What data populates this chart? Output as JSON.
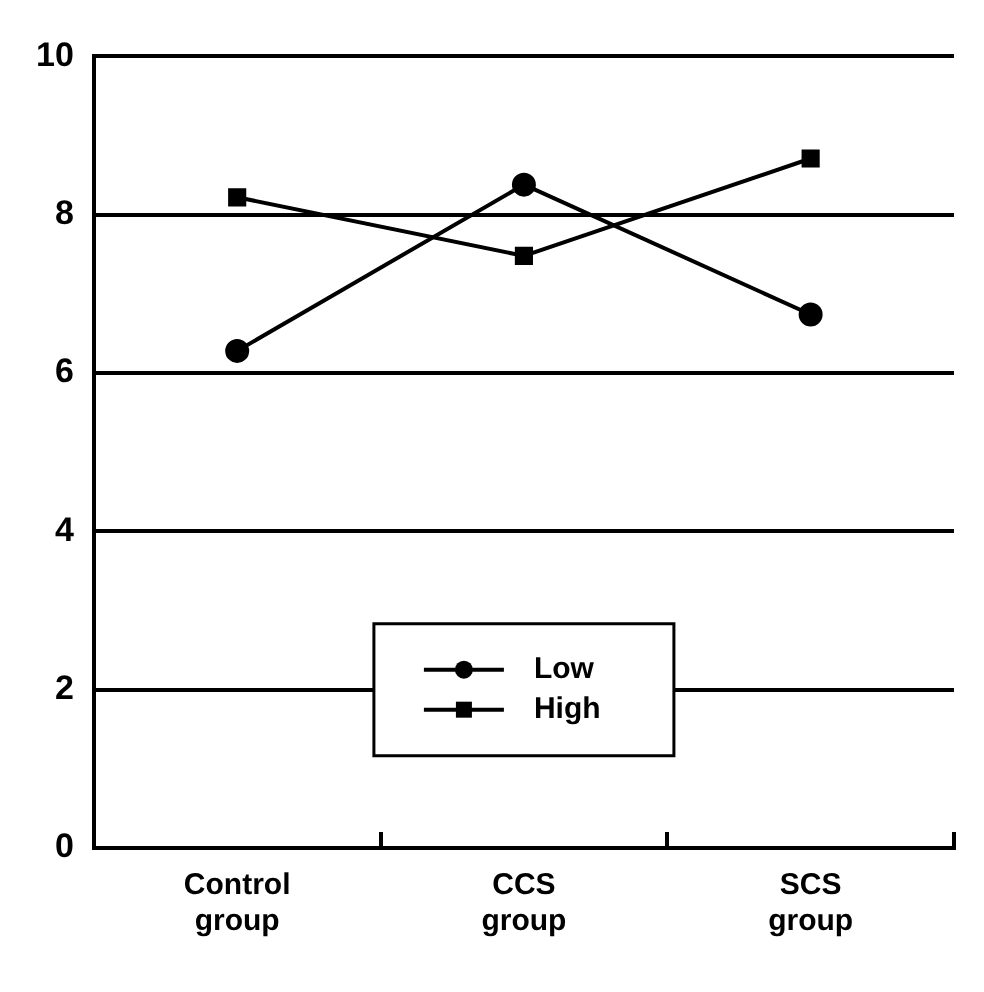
{
  "chart_data": {
    "type": "line",
    "categories": [
      "Control\ngroup",
      "CCS\ngroup",
      "SCS\ngroup"
    ],
    "series": [
      {
        "name": "Low",
        "color": "#000000",
        "marker": "circle",
        "values": [
          6.28,
          8.38,
          6.74
        ]
      },
      {
        "name": "High",
        "color": "#000000",
        "marker": "square",
        "values": [
          8.22,
          7.48,
          8.71
        ]
      }
    ],
    "ylim": [
      0,
      10
    ],
    "yticks": [
      0,
      2,
      4,
      6,
      8,
      10
    ],
    "grid": "y",
    "legend": "bottom",
    "line_style": "solid"
  }
}
